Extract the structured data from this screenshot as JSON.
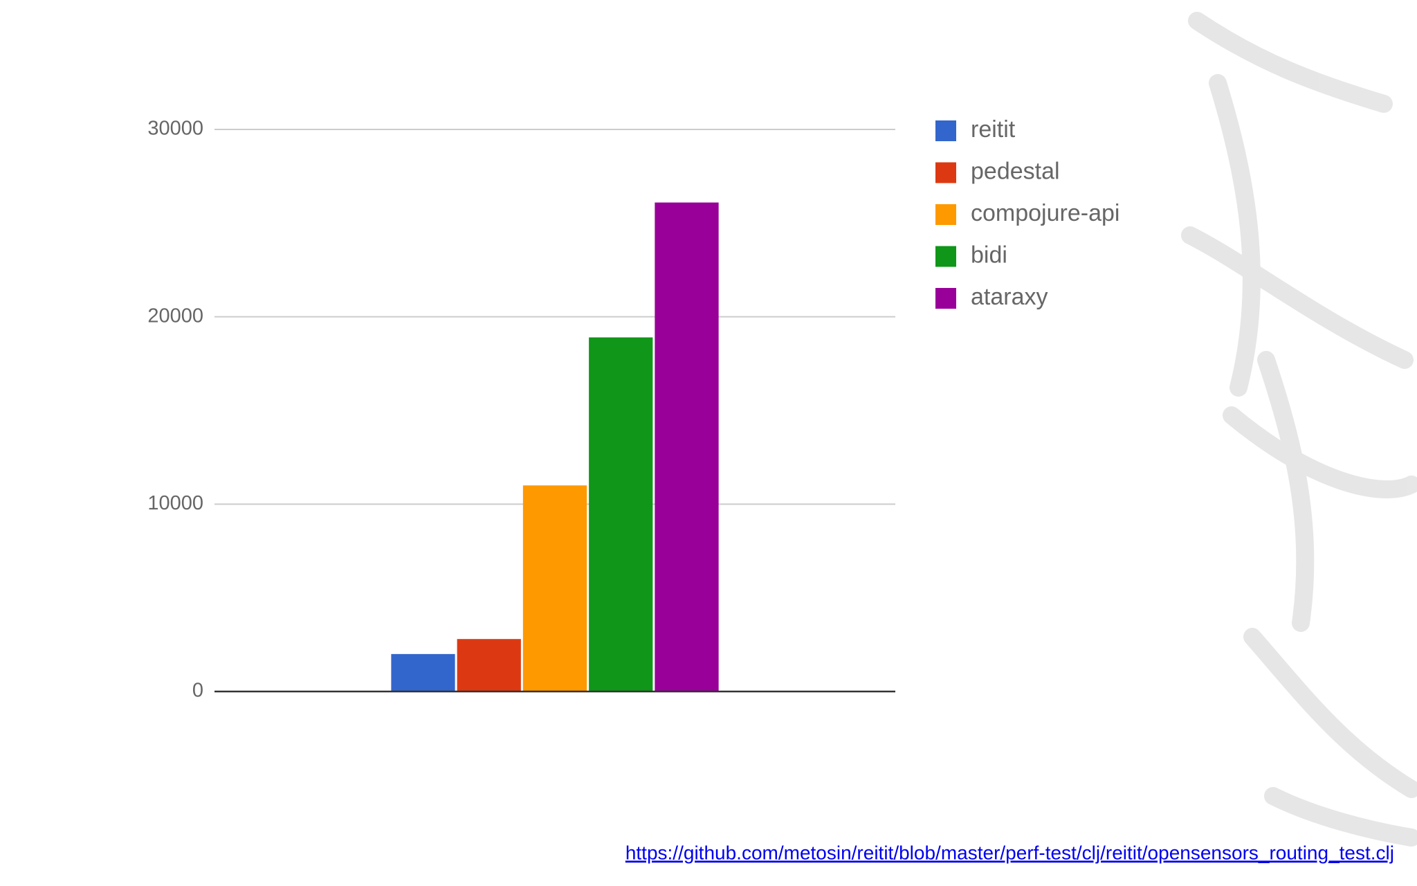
{
  "chart_data": {
    "type": "bar",
    "categories": [
      null
    ],
    "series": [
      {
        "name": "reitit",
        "color": "#3366cc",
        "values": [
          2000
        ]
      },
      {
        "name": "pedestal",
        "color": "#dc3912",
        "values": [
          2800
        ]
      },
      {
        "name": "compojure-api",
        "color": "#ff9900",
        "values": [
          11000
        ]
      },
      {
        "name": "bidi",
        "color": "#109618",
        "values": [
          18900
        ]
      },
      {
        "name": "ataraxy",
        "color": "#990099",
        "values": [
          26100
        ]
      }
    ],
    "ylim": [
      0,
      30000
    ],
    "yticks": [
      0,
      10000,
      20000,
      30000
    ],
    "grid": true,
    "legend": "right"
  },
  "footer": {
    "link": "https://github.com/metosin/reitit/blob/master/perf-test/clj/reitit/opensensors_routing_test.clj"
  }
}
